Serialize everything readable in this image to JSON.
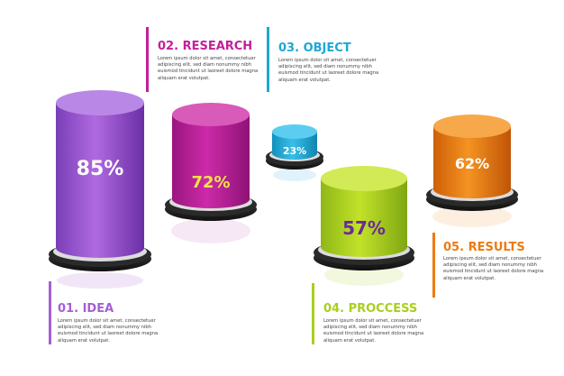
{
  "steps": [
    {
      "number": "01.",
      "title": "IDEA",
      "value": "85%",
      "color": "#a45fd6",
      "body": "Lorem ipsum dolor sit amet, consectetuer adipiscing elit, sed diam nonummy nibh euismod tincidunt ut laoreet dolore magna aliquam erat volutpat."
    },
    {
      "number": "02.",
      "title": "RESEARCH",
      "value": "72%",
      "color": "#c31f9b",
      "body": "Lorem ipsum dolor sit amet, consectetuer adipiscing elit, sed diam nonummy nibh euismod tincidunt ut laoreet dolore magna aliquam erat volutpat."
    },
    {
      "number": "03.",
      "title": "OBJECT",
      "value": "23%",
      "color": "#1ea8d4",
      "body": "Lorem ipsum dolor sit amet, consectetuer adipiscing elit, sed diam nonummy nibh euismod tincidunt ut laoreet dolore magna aliquam erat volutpat."
    },
    {
      "number": "04.",
      "title": "PROCCESS",
      "value": "57%",
      "color": "#a9cf1e",
      "body": "Lorem ipsum dolor sit amet, consectetuer adipiscing elit, sed diam nonummy nibh euismod tincidunt ut laoreet dolore magna aliquam erat volutpat."
    },
    {
      "number": "05.",
      "title": "RESULTS",
      "value": "62%",
      "color": "#ec7a12",
      "body": "Lorem ipsum dolor sit amet, consectetuer adipiscing elit, sed diam nonummy nibh euismod tincidunt ut laoreet dolore magna aliquam erat volutpat."
    }
  ]
}
